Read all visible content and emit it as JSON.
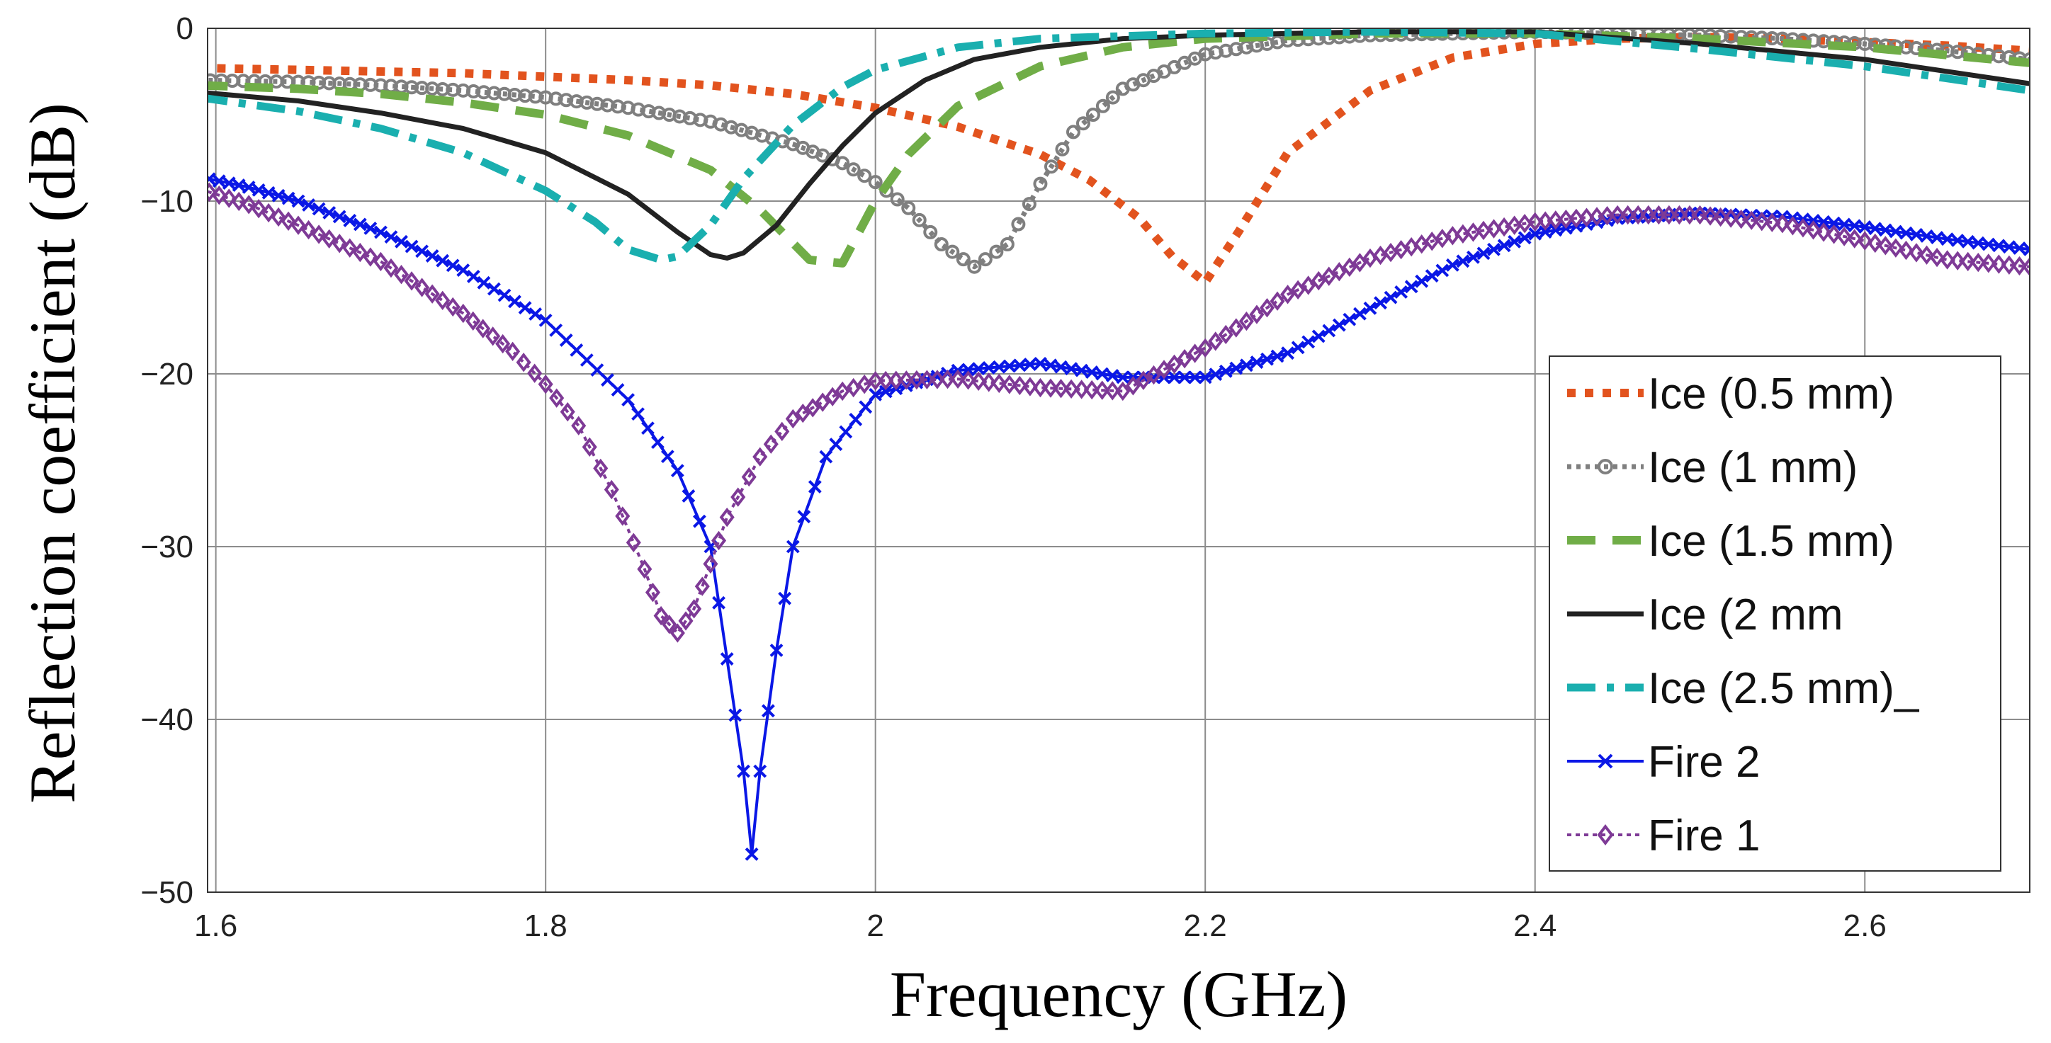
{
  "chart_data": {
    "type": "line",
    "title": "",
    "xlabel": "Frequency (GHz)",
    "ylabel": "Reflection coefficient (dB)",
    "xlim": [
      1.595,
      2.7
    ],
    "ylim": [
      -50,
      0
    ],
    "xticks": [
      1.6,
      1.8,
      2.0,
      2.2,
      2.4,
      2.6
    ],
    "xtick_labels": [
      "1.6",
      "1.8",
      "2",
      "2.2",
      "2.4",
      "2.6"
    ],
    "yticks": [
      0,
      -10,
      -20,
      -30,
      -40,
      -50
    ],
    "ytick_labels": [
      "0",
      "−10",
      "−20",
      "−30",
      "−40",
      "−50"
    ],
    "grid": true,
    "legend_position": "right",
    "series": [
      {
        "name": "Ice (0.5 mm)",
        "color": "#E2531E",
        "style": "dotted-square",
        "x": [
          1.59,
          1.65,
          1.7,
          1.75,
          1.8,
          1.85,
          1.9,
          1.95,
          2.0,
          2.05,
          2.1,
          2.13,
          2.16,
          2.18,
          2.2,
          2.22,
          2.25,
          2.3,
          2.35,
          2.4,
          2.45,
          2.5,
          2.55,
          2.6,
          2.65,
          2.7
        ],
        "values": [
          -2.3,
          -2.4,
          -2.5,
          -2.6,
          -2.8,
          -3.0,
          -3.3,
          -3.8,
          -4.6,
          -5.7,
          -7.3,
          -8.8,
          -11.0,
          -13.2,
          -14.7,
          -11.8,
          -7.2,
          -3.6,
          -1.7,
          -0.9,
          -0.6,
          -0.5,
          -0.6,
          -0.8,
          -1.0,
          -1.3
        ]
      },
      {
        "name": "Ice (1 mm)",
        "color": "#7F7F7F",
        "style": "dotted-circle",
        "x": [
          1.59,
          1.65,
          1.7,
          1.75,
          1.8,
          1.85,
          1.9,
          1.95,
          1.98,
          2.0,
          2.02,
          2.04,
          2.06,
          2.08,
          2.1,
          2.12,
          2.15,
          2.2,
          2.25,
          2.3,
          2.35,
          2.4,
          2.45,
          2.5,
          2.55,
          2.6,
          2.65,
          2.7
        ],
        "values": [
          -3.0,
          -3.1,
          -3.3,
          -3.6,
          -4.0,
          -4.6,
          -5.4,
          -6.7,
          -7.8,
          -8.9,
          -10.4,
          -12.5,
          -13.8,
          -12.5,
          -9.0,
          -6.0,
          -3.5,
          -1.5,
          -0.7,
          -0.4,
          -0.3,
          -0.2,
          -0.3,
          -0.4,
          -0.6,
          -0.9,
          -1.3,
          -1.8
        ]
      },
      {
        "name": "Ice (1.5 mm)",
        "color": "#70AD47",
        "style": "dashed",
        "x": [
          1.59,
          1.65,
          1.7,
          1.75,
          1.8,
          1.85,
          1.9,
          1.93,
          1.96,
          1.98,
          2.0,
          2.02,
          2.05,
          2.1,
          2.15,
          2.2,
          2.3,
          2.4,
          2.5,
          2.6,
          2.7
        ],
        "values": [
          -3.3,
          -3.5,
          -3.8,
          -4.3,
          -5.0,
          -6.2,
          -8.2,
          -10.5,
          -13.4,
          -13.6,
          -10.0,
          -7.3,
          -4.5,
          -2.2,
          -1.1,
          -0.6,
          -0.3,
          -0.3,
          -0.6,
          -1.1,
          -2.0
        ]
      },
      {
        "name": "Ice (2 mm",
        "color": "#222222",
        "style": "solid",
        "x": [
          1.59,
          1.65,
          1.7,
          1.75,
          1.8,
          1.85,
          1.88,
          1.9,
          1.91,
          1.92,
          1.94,
          1.96,
          1.98,
          2.0,
          2.03,
          2.06,
          2.1,
          2.15,
          2.2,
          2.3,
          2.4,
          2.5,
          2.6,
          2.7
        ],
        "values": [
          -3.7,
          -4.2,
          -4.9,
          -5.8,
          -7.2,
          -9.6,
          -11.8,
          -13.1,
          -13.3,
          -13.0,
          -11.4,
          -9.0,
          -6.8,
          -4.9,
          -3.0,
          -1.8,
          -1.1,
          -0.6,
          -0.4,
          -0.2,
          -0.2,
          -0.9,
          -1.8,
          -3.2
        ]
      },
      {
        "name": "Ice (2.5 mm)_",
        "color": "#1AAFAF",
        "style": "dash-dot",
        "x": [
          1.59,
          1.65,
          1.7,
          1.75,
          1.8,
          1.83,
          1.85,
          1.87,
          1.88,
          1.9,
          1.92,
          1.95,
          1.98,
          2.0,
          2.05,
          2.1,
          2.2,
          2.3,
          2.4,
          2.5,
          2.6,
          2.7
        ],
        "values": [
          -4.0,
          -4.8,
          -5.8,
          -7.2,
          -9.4,
          -11.2,
          -12.8,
          -13.4,
          -13.2,
          -11.4,
          -8.7,
          -5.6,
          -3.4,
          -2.4,
          -1.1,
          -0.6,
          -0.3,
          -0.2,
          -0.3,
          -1.2,
          -2.2,
          -3.6
        ]
      },
      {
        "name": "Fire 2",
        "color": "#0A17E6",
        "style": "solid-x",
        "x": [
          1.59,
          1.62,
          1.65,
          1.7,
          1.75,
          1.8,
          1.85,
          1.88,
          1.9,
          1.91,
          1.92,
          1.925,
          1.93,
          1.94,
          1.95,
          1.97,
          2.0,
          2.05,
          2.1,
          2.15,
          2.2,
          2.25,
          2.3,
          2.35,
          2.4,
          2.45,
          2.5,
          2.55,
          2.6,
          2.65,
          2.7
        ],
        "values": [
          -8.6,
          -9.2,
          -10.0,
          -11.8,
          -14.0,
          -16.9,
          -21.5,
          -25.6,
          -30.0,
          -36.5,
          -43.0,
          -47.8,
          -43.0,
          -36.0,
          -30.0,
          -24.8,
          -21.2,
          -19.8,
          -19.4,
          -20.2,
          -20.2,
          -18.8,
          -16.2,
          -13.7,
          -11.9,
          -11.0,
          -10.7,
          -10.9,
          -11.5,
          -12.2,
          -12.8
        ]
      },
      {
        "name": "Fire 1",
        "color": "#7E3A96",
        "style": "dotted-diamond",
        "x": [
          1.59,
          1.62,
          1.65,
          1.7,
          1.75,
          1.78,
          1.8,
          1.82,
          1.84,
          1.86,
          1.87,
          1.88,
          1.89,
          1.9,
          1.91,
          1.93,
          1.95,
          1.98,
          2.0,
          2.05,
          2.1,
          2.15,
          2.2,
          2.25,
          2.3,
          2.35,
          2.4,
          2.45,
          2.5,
          2.55,
          2.6,
          2.65,
          2.7
        ],
        "values": [
          -9.3,
          -10.2,
          -11.4,
          -13.5,
          -16.5,
          -18.7,
          -20.6,
          -23.0,
          -26.7,
          -31.3,
          -34.0,
          -35.0,
          -33.6,
          -31.0,
          -28.3,
          -24.8,
          -22.6,
          -21.0,
          -20.4,
          -20.3,
          -20.8,
          -21.0,
          -18.5,
          -15.4,
          -13.3,
          -12.0,
          -11.2,
          -10.8,
          -10.8,
          -11.3,
          -12.3,
          -13.4,
          -13.8
        ]
      }
    ]
  }
}
